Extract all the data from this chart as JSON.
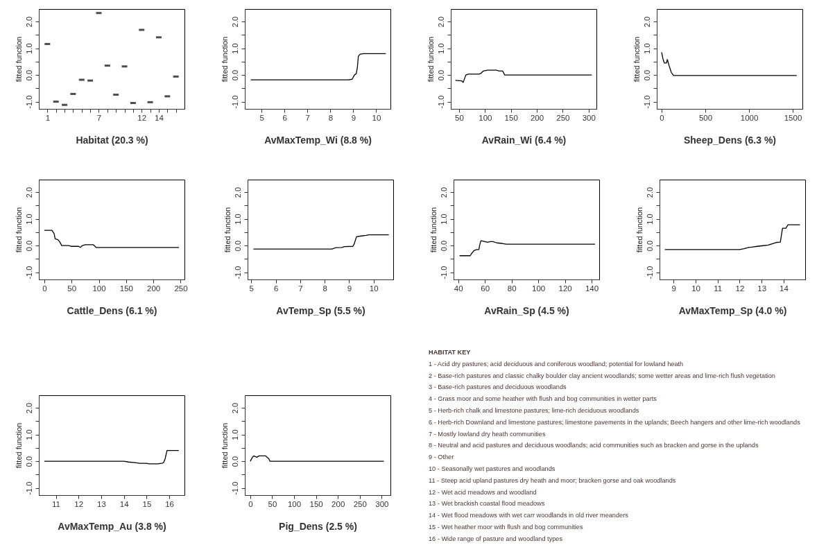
{
  "chart_data": [
    {
      "type": "scatter",
      "xlabel": "Habitat (20.3 %)",
      "ylabel": "fitted function",
      "categories": [
        "1",
        null,
        null,
        null,
        null,
        null,
        "7",
        null,
        null,
        null,
        null,
        "12",
        null,
        "14",
        null,
        null
      ],
      "ylim": [
        -1.27,
        2.47
      ],
      "yticks": [
        {
          "value": -1,
          "label": "-1.0"
        },
        {
          "value": -0.5,
          "label": null
        },
        {
          "value": 0,
          "label": "0.0"
        },
        {
          "value": 0.5,
          "label": null
        },
        {
          "value": 1,
          "label": "1.0"
        },
        {
          "value": 1.5,
          "label": null
        },
        {
          "value": 2,
          "label": "2.0"
        }
      ],
      "series": [
        {
          "color": "#000000",
          "values": [
            1.16,
            -1.0,
            -1.12,
            -0.71,
            -0.18,
            -0.21,
            2.32,
            0.35,
            -0.74,
            0.32,
            -1.05,
            1.69,
            -1.02,
            1.41,
            -0.8,
            -0.06
          ]
        }
      ]
    },
    {
      "type": "line",
      "xlabel": "AvMaxTemp_Wi (8.8 %)",
      "ylabel": "fitted function",
      "xlim": [
        4.27,
        10.62
      ],
      "xticks": [
        5,
        6,
        7,
        8,
        9,
        10
      ],
      "ylim": [
        -1.27,
        2.47
      ],
      "yticks": [
        {
          "value": -1,
          "label": "-1.0"
        },
        {
          "value": -0.5,
          "label": null
        },
        {
          "value": 0,
          "label": "0.0"
        },
        {
          "value": 0.5,
          "label": null
        },
        {
          "value": 1,
          "label": "1.0"
        },
        {
          "value": 1.5,
          "label": null
        },
        {
          "value": 2,
          "label": "2.0"
        }
      ],
      "x": [
        4.53,
        8.8,
        8.95,
        9.05,
        9.13,
        9.18,
        9.22,
        9.3,
        9.45,
        10.42
      ],
      "series": [
        {
          "color": "#000000",
          "values": [
            -0.18,
            -0.18,
            -0.16,
            0.0,
            0.05,
            0.3,
            0.7,
            0.78,
            0.8,
            0.8
          ]
        }
      ]
    },
    {
      "type": "line",
      "xlabel": "AvRain_Wi (6.4 %)",
      "ylabel": "fitted function",
      "xlim": [
        34,
        315
      ],
      "xticks": [
        50,
        100,
        150,
        200,
        250,
        300
      ],
      "ylim": [
        -1.27,
        2.47
      ],
      "yticks": [
        {
          "value": -1,
          "label": "-1.0"
        },
        {
          "value": -0.5,
          "label": null
        },
        {
          "value": 0,
          "label": "0.0"
        },
        {
          "value": 0.5,
          "label": null
        },
        {
          "value": 1,
          "label": "1.0"
        },
        {
          "value": 1.5,
          "label": null
        },
        {
          "value": 2,
          "label": "2.0"
        }
      ],
      "x": [
        43,
        55,
        58,
        63,
        68,
        88,
        92,
        97,
        105,
        122,
        127,
        134,
        138,
        306
      ],
      "series": [
        {
          "color": "#000000",
          "values": [
            -0.2,
            -0.22,
            -0.28,
            0.0,
            0.03,
            0.03,
            0.06,
            0.15,
            0.18,
            0.18,
            0.15,
            0.15,
            0.0,
            0.0
          ]
        }
      ]
    },
    {
      "type": "line",
      "xlabel": "Sheep_Dens (6.3 %)",
      "ylabel": "fitted function",
      "xlim": [
        -56,
        1611
      ],
      "xticks": [
        0,
        500,
        1000,
        1500
      ],
      "ylim": [
        -1.27,
        2.47
      ],
      "yticks": [
        {
          "value": -1,
          "label": "-1.0"
        },
        {
          "value": -0.5,
          "label": null
        },
        {
          "value": 0,
          "label": "0.0"
        },
        {
          "value": 0.5,
          "label": null
        },
        {
          "value": 1,
          "label": "1.0"
        },
        {
          "value": 1.5,
          "label": null
        },
        {
          "value": 2,
          "label": "2.0"
        }
      ],
      "x": [
        0,
        15,
        30,
        55,
        65,
        85,
        110,
        135,
        1546
      ],
      "series": [
        {
          "color": "#000000",
          "values": [
            0.85,
            0.6,
            0.45,
            0.45,
            0.58,
            0.35,
            0.1,
            -0.02,
            -0.02
          ]
        }
      ]
    },
    {
      "type": "line",
      "xlabel": "Cattle_Dens (6.1 %)",
      "ylabel": "fitted function",
      "xlim": [
        -10,
        257
      ],
      "xticks": [
        0,
        50,
        100,
        150,
        200,
        250
      ],
      "ylim": [
        -1.27,
        2.47
      ],
      "yticks": [
        {
          "value": -1,
          "label": "-1.0"
        },
        {
          "value": -0.5,
          "label": null
        },
        {
          "value": 0,
          "label": "0.0"
        },
        {
          "value": 0.5,
          "label": null
        },
        {
          "value": 1,
          "label": "1.0"
        },
        {
          "value": 1.5,
          "label": null
        },
        {
          "value": 2,
          "label": "2.0"
        }
      ],
      "x": [
        0,
        14,
        18,
        20,
        25,
        28,
        32,
        45,
        50,
        63,
        66,
        70,
        75,
        90,
        95,
        247
      ],
      "series": [
        {
          "color": "#000000",
          "values": [
            0.57,
            0.57,
            0.45,
            0.25,
            0.22,
            0.15,
            0.0,
            0.0,
            -0.03,
            -0.03,
            -0.07,
            0.0,
            0.03,
            0.03,
            -0.07,
            -0.07
          ]
        }
      ]
    },
    {
      "type": "line",
      "xlabel": "AvTemp_Sp (5.5 %)",
      "ylabel": "fitted function",
      "xlim": [
        4.85,
        10.8
      ],
      "xticks": [
        5,
        6,
        7,
        8,
        9,
        10
      ],
      "ylim": [
        -1.27,
        2.47
      ],
      "yticks": [
        {
          "value": -1,
          "label": "-1.0"
        },
        {
          "value": -0.5,
          "label": null
        },
        {
          "value": 0,
          "label": "0.0"
        },
        {
          "value": 0.5,
          "label": null
        },
        {
          "value": 1,
          "label": "1.0"
        },
        {
          "value": 1.5,
          "label": null
        },
        {
          "value": 2,
          "label": "2.0"
        }
      ],
      "x": [
        5.09,
        8.3,
        8.45,
        8.7,
        8.8,
        9.15,
        9.2,
        9.3,
        9.5,
        9.7,
        9.8,
        10.62
      ],
      "series": [
        {
          "color": "#000000",
          "values": [
            -0.13,
            -0.13,
            -0.08,
            -0.07,
            -0.04,
            -0.03,
            0.05,
            0.33,
            0.36,
            0.38,
            0.4,
            0.4
          ]
        }
      ]
    },
    {
      "type": "line",
      "xlabel": "AvRain_Sp (4.5 %)",
      "ylabel": "fitted function",
      "xlim": [
        36.5,
        145.7
      ],
      "xticks": [
        40,
        60,
        80,
        100,
        120,
        140
      ],
      "ylim": [
        -1.27,
        2.47
      ],
      "yticks": [
        {
          "value": -1,
          "label": "-1.0"
        },
        {
          "value": -0.5,
          "label": null
        },
        {
          "value": 0,
          "label": "0.0"
        },
        {
          "value": 0.5,
          "label": null
        },
        {
          "value": 1,
          "label": "1.0"
        },
        {
          "value": 1.5,
          "label": null
        },
        {
          "value": 2,
          "label": "2.0"
        }
      ],
      "x": [
        41,
        49,
        50,
        52,
        54,
        55.5,
        56,
        57,
        60,
        62,
        64,
        66,
        69,
        73,
        76,
        142.6
      ],
      "series": [
        {
          "color": "#000000",
          "values": [
            -0.38,
            -0.38,
            -0.3,
            -0.18,
            -0.15,
            -0.15,
            0.0,
            0.18,
            0.15,
            0.12,
            0.15,
            0.15,
            0.1,
            0.08,
            0.05,
            0.05
          ]
        }
      ]
    },
    {
      "type": "line",
      "xlabel": "AvMaxTemp_Sp (4.0 %)",
      "ylabel": "fitted function",
      "xlim": [
        8.36,
        14.98
      ],
      "xticks": [
        9,
        10,
        11,
        12,
        13,
        14
      ],
      "ylim": [
        -1.27,
        2.47
      ],
      "yticks": [
        {
          "value": -1,
          "label": "-1.0"
        },
        {
          "value": -0.5,
          "label": null
        },
        {
          "value": 0,
          "label": "0.0"
        },
        {
          "value": 0.5,
          "label": null
        },
        {
          "value": 1,
          "label": "1.0"
        },
        {
          "value": 1.5,
          "label": null
        },
        {
          "value": 2,
          "label": "2.0"
        }
      ],
      "x": [
        8.6,
        12.0,
        12.2,
        12.4,
        12.6,
        12.8,
        13.0,
        13.3,
        13.5,
        13.7,
        13.85,
        13.95,
        14.1,
        14.2,
        14.74
      ],
      "series": [
        {
          "color": "#000000",
          "values": [
            -0.15,
            -0.15,
            -0.12,
            -0.07,
            -0.05,
            -0.03,
            -0.01,
            0.02,
            0.07,
            0.12,
            0.13,
            0.65,
            0.65,
            0.78,
            0.78
          ]
        }
      ]
    },
    {
      "type": "line",
      "xlabel": "AvMaxTemp_Au (3.8 %)",
      "ylabel": "fitted function",
      "xlim": [
        10.25,
        16.67
      ],
      "xticks": [
        11,
        12,
        13,
        14,
        15,
        16
      ],
      "ylim": [
        -1.27,
        2.47
      ],
      "yticks": [
        {
          "value": -1,
          "label": "-1.0"
        },
        {
          "value": -0.5,
          "label": null
        },
        {
          "value": 0,
          "label": "0.0"
        },
        {
          "value": 0.5,
          "label": null
        },
        {
          "value": 1,
          "label": "1.0"
        },
        {
          "value": 1.5,
          "label": null
        },
        {
          "value": 2,
          "label": "2.0"
        }
      ],
      "x": [
        10.49,
        14.0,
        14.2,
        14.5,
        14.7,
        15.0,
        15.1,
        15.5,
        15.7,
        15.75,
        15.82,
        15.9,
        16.42
      ],
      "series": [
        {
          "color": "#000000",
          "values": [
            0.0,
            0.0,
            -0.03,
            -0.05,
            -0.08,
            -0.08,
            -0.1,
            -0.1,
            -0.07,
            -0.05,
            0.1,
            0.4,
            0.4
          ]
        }
      ]
    },
    {
      "type": "line",
      "xlabel": "Pig_Dens (2.5 %)",
      "ylabel": "fitted function",
      "xlim": [
        -12.5,
        320
      ],
      "xticks": [
        0,
        50,
        100,
        150,
        200,
        250,
        300
      ],
      "ylim": [
        -1.27,
        2.47
      ],
      "yticks": [
        {
          "value": -1,
          "label": "-1.0"
        },
        {
          "value": -0.5,
          "label": null
        },
        {
          "value": 0,
          "label": "0.0"
        },
        {
          "value": 0.5,
          "label": null
        },
        {
          "value": 1,
          "label": "1.0"
        },
        {
          "value": 1.5,
          "label": null
        },
        {
          "value": 2,
          "label": "2.0"
        }
      ],
      "x": [
        0,
        5,
        8,
        15,
        20,
        35,
        38,
        42,
        45,
        305
      ],
      "series": [
        {
          "color": "#000000",
          "values": [
            0.0,
            0.15,
            0.2,
            0.15,
            0.2,
            0.2,
            0.15,
            0.1,
            0.0,
            0.0
          ]
        }
      ]
    },
    {
      "type": "other",
      "title": "HABITAT KEY",
      "annotations": [
        "1 - Acid dry pastures; acid deciduous and coniferous woodland; potential for lowland heath",
        "2 - Base-rich pastures and classic chalky boulder clay ancient woodlands; some wetter areas and lime-rich flush vegetation",
        "3 - Base-rich pastures and deciduous woodlands",
        "4 - Grass moor and some heather with flush and bog communities in wetter parts",
        "5 - Herb-rich chalk and limestone pastures; lime-rich deciduous woodlands",
        "6 - Herb-rich Downland and limestone pastures; limestone pavements in the uplands; Beech hangers and other lime-rich woodlands",
        "7 - Mostly lowland dry heath communities",
        "8 - Neutral and acid pastures and deciduous woodlands; acid communities such as bracken and gorse in the uplands",
        "9 - Other",
        "10 - Seasonally wet pastures and woodlands",
        "11 - Steep acid upland pastures dry heath and moor; bracken gorse and oak woodlands",
        "12 - Wet acid meadows and woodland",
        "13 - Wet brackish coastal flood meadows",
        "14 - Wet flood meadows with wet carr woodlands in old river meanders",
        "15 - Wet heather moor with flush and bog communities",
        "16 - Wide range of pasture and woodland types"
      ]
    }
  ]
}
